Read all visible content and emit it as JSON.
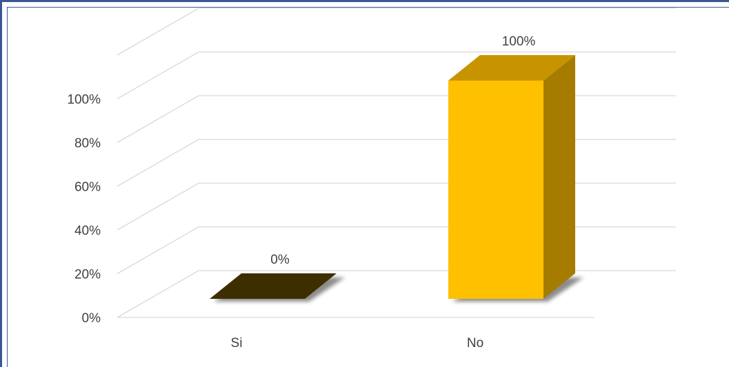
{
  "chart_data": {
    "type": "bar",
    "categories": [
      "Si",
      "No"
    ],
    "values": [
      0,
      100
    ],
    "data_labels": [
      "0%",
      "100%"
    ],
    "y_ticks": [
      "0%",
      "20%",
      "40%",
      "60%",
      "80%",
      "100%"
    ],
    "ylim": [
      0,
      100
    ],
    "grid": true,
    "three_d": true,
    "colors": {
      "front": [
        "#3d2e00",
        "#ffc000"
      ],
      "top": [
        "#3d2e00",
        "#c79400"
      ],
      "side": [
        "#2a1f00",
        "#a57c00"
      ]
    }
  }
}
